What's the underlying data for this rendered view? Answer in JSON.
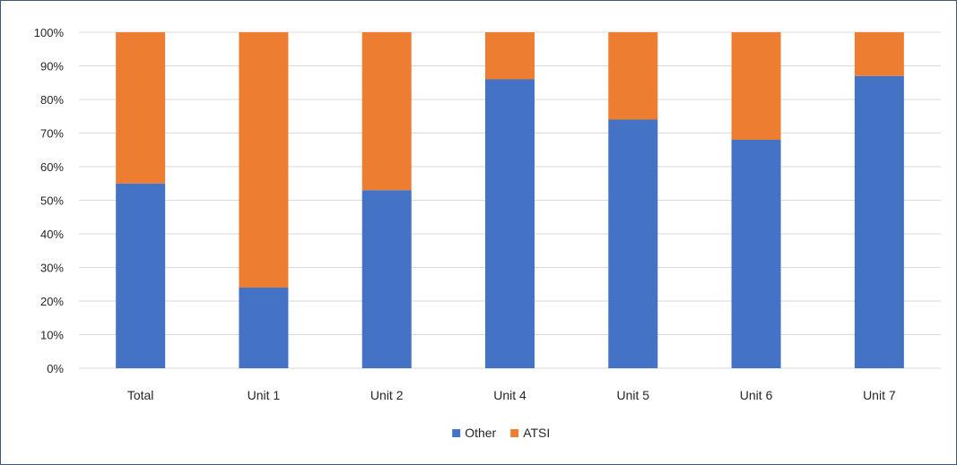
{
  "chart_data": {
    "type": "bar",
    "stacked": true,
    "percent_stacked": true,
    "categories": [
      "Total",
      "Unit 1",
      "Unit 2",
      "Unit 4",
      "Unit 5",
      "Unit 6",
      "Unit 7"
    ],
    "series": [
      {
        "name": "Other",
        "color": "#4472c4",
        "values": [
          55,
          24,
          53,
          86,
          74,
          68,
          87
        ]
      },
      {
        "name": "ATSI",
        "color": "#ed7d31",
        "values": [
          45,
          76,
          47,
          14,
          26,
          32,
          13
        ]
      }
    ],
    "y_ticks": [
      "0%",
      "10%",
      "20%",
      "30%",
      "40%",
      "50%",
      "60%",
      "70%",
      "80%",
      "90%",
      "100%"
    ],
    "ylim": [
      0,
      100
    ],
    "grid": true,
    "legend_position": "bottom-center"
  }
}
